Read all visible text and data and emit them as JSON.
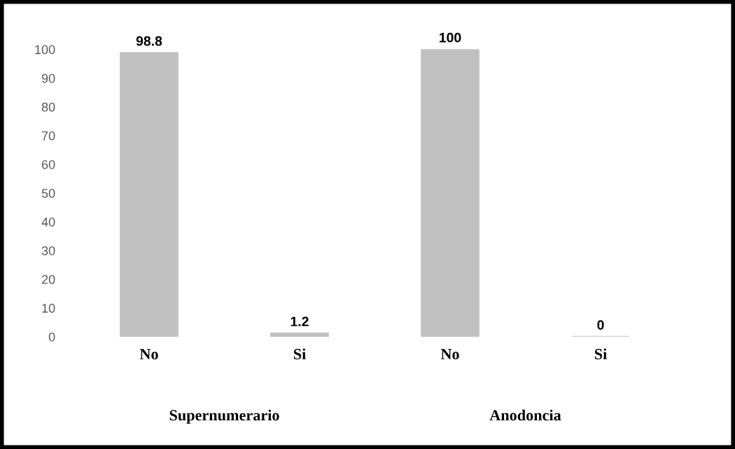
{
  "chart_data": {
    "type": "bar",
    "categories": [
      "No",
      "Si",
      "No",
      "Si"
    ],
    "values": [
      98.8,
      1.2,
      100,
      0
    ],
    "color": "#c0c0c0",
    "ylim": [
      0,
      100
    ],
    "yticks": [
      0,
      10,
      20,
      30,
      40,
      50,
      60,
      70,
      80,
      90,
      100
    ],
    "data_labels": true,
    "grid": false,
    "legend": false,
    "annotations": [
      "Supernumerario",
      "Anodoncia"
    ]
  }
}
